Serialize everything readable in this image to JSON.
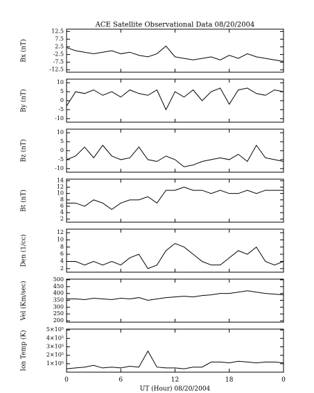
{
  "chart_data": [
    {
      "type": "line",
      "title": "ACE Satellite Observational Data   08/20/2004",
      "ylabel": "Bx (nT)",
      "color": "#000000",
      "x": [
        0,
        1,
        2,
        3,
        4,
        5,
        6,
        7,
        8,
        9,
        10,
        11,
        12,
        13,
        14,
        15,
        16,
        17,
        18,
        19,
        20,
        21,
        22,
        23,
        24
      ],
      "values": [
        2,
        0,
        -1,
        -2,
        -1,
        0,
        -2,
        -1,
        -3,
        -4,
        -2,
        3,
        -4,
        -5,
        -6,
        -5,
        -4,
        -6,
        -3,
        -5,
        -2,
        -4,
        -5,
        -6,
        -7
      ],
      "xlim": [
        0,
        24
      ],
      "ylim": [
        -14,
        14
      ],
      "yticks": [
        12.5,
        7.5,
        2.5,
        -2.5,
        -7.5,
        -12.5
      ]
    },
    {
      "type": "line",
      "ylabel": "By (nT)",
      "color": "#000000",
      "x": [
        0,
        1,
        2,
        3,
        4,
        5,
        6,
        7,
        8,
        9,
        10,
        11,
        12,
        13,
        14,
        15,
        16,
        17,
        18,
        19,
        20,
        21,
        22,
        23,
        24
      ],
      "values": [
        -3,
        5,
        4,
        6,
        3,
        5,
        2,
        6,
        4,
        3,
        6,
        -5,
        5,
        2,
        6,
        0,
        5,
        7,
        -2,
        6,
        7,
        4,
        3,
        6,
        5
      ],
      "xlim": [
        0,
        24
      ],
      "ylim": [
        -12,
        12
      ],
      "yticks": [
        10,
        5,
        0,
        -5,
        -10
      ]
    },
    {
      "type": "line",
      "ylabel": "Bz (nT)",
      "color": "#000000",
      "x": [
        0,
        1,
        2,
        3,
        4,
        5,
        6,
        7,
        8,
        9,
        10,
        11,
        12,
        13,
        14,
        15,
        16,
        17,
        18,
        19,
        20,
        21,
        22,
        23,
        24
      ],
      "values": [
        -5,
        -3,
        2,
        -4,
        3,
        -3,
        -5,
        -4,
        2,
        -5,
        -6,
        -3,
        -5,
        -9,
        -8,
        -6,
        -5,
        -4,
        -5,
        -2,
        -6,
        3,
        -4,
        -5,
        -6
      ],
      "xlim": [
        0,
        24
      ],
      "ylim": [
        -12,
        12
      ],
      "yticks": [
        10,
        5,
        0,
        -5,
        -10
      ]
    },
    {
      "type": "line",
      "ylabel": "Bt (nT)",
      "color": "#000000",
      "x": [
        0,
        1,
        2,
        3,
        4,
        5,
        6,
        7,
        8,
        9,
        10,
        11,
        12,
        13,
        14,
        15,
        16,
        17,
        18,
        19,
        20,
        21,
        22,
        23,
        24
      ],
      "values": [
        7,
        7,
        6,
        8,
        7,
        5,
        7,
        8,
        8,
        9,
        7,
        11,
        11,
        12,
        11,
        11,
        10,
        11,
        10,
        10,
        11,
        10,
        11,
        11,
        11
      ],
      "xlim": [
        0,
        24
      ],
      "ylim": [
        1,
        14.5
      ],
      "yticks": [
        14,
        12,
        10,
        8,
        6,
        4,
        2
      ]
    },
    {
      "type": "line",
      "ylabel": "Den (1/cc)",
      "color": "#000000",
      "x": [
        0,
        1,
        2,
        3,
        4,
        5,
        6,
        7,
        8,
        9,
        10,
        11,
        12,
        13,
        14,
        15,
        16,
        17,
        18,
        19,
        20,
        21,
        22,
        23,
        24
      ],
      "values": [
        4,
        4,
        3,
        4,
        3,
        4,
        3,
        5,
        6,
        2,
        3,
        7,
        9,
        8,
        6,
        4,
        3,
        3,
        5,
        7,
        6,
        8,
        4,
        3,
        4
      ],
      "xlim": [
        0,
        24
      ],
      "ylim": [
        1,
        13
      ],
      "yticks": [
        12,
        10,
        8,
        6,
        4,
        2
      ]
    },
    {
      "type": "line",
      "ylabel": "Vel (Km/sec)",
      "color": "#000000",
      "x": [
        0,
        1,
        2,
        3,
        4,
        5,
        6,
        7,
        8,
        9,
        10,
        11,
        12,
        13,
        14,
        15,
        16,
        17,
        18,
        19,
        20,
        21,
        22,
        23,
        24
      ],
      "values": [
        360,
        360,
        355,
        365,
        360,
        355,
        365,
        360,
        370,
        350,
        360,
        370,
        375,
        380,
        375,
        385,
        390,
        400,
        400,
        410,
        420,
        410,
        400,
        395,
        390
      ],
      "xlim": [
        0,
        24
      ],
      "ylim": [
        190,
        505
      ],
      "yticks": [
        500,
        450,
        400,
        350,
        300,
        250,
        200
      ]
    },
    {
      "type": "line",
      "ylabel": "Ion Temp (K)",
      "xlabel": "UT (Hour)   08/20/2004",
      "color": "#000000",
      "x": [
        0,
        1,
        2,
        3,
        4,
        5,
        6,
        7,
        8,
        9,
        10,
        11,
        12,
        13,
        14,
        15,
        16,
        17,
        18,
        19,
        20,
        21,
        22,
        23,
        24
      ],
      "values": [
        40000,
        50000,
        60000,
        80000,
        50000,
        60000,
        50000,
        70000,
        60000,
        250000,
        60000,
        50000,
        50000,
        40000,
        60000,
        60000,
        120000,
        120000,
        110000,
        130000,
        120000,
        110000,
        120000,
        120000,
        110000
      ],
      "xlim": [
        0,
        24
      ],
      "ylim": [
        0,
        510000
      ],
      "yticks": [
        {
          "value": 500000,
          "label": "5×10⁵"
        },
        {
          "value": 400000,
          "label": "4×10⁵"
        },
        {
          "value": 300000,
          "label": "3×10⁵"
        },
        {
          "value": 200000,
          "label": "2×10⁵"
        },
        {
          "value": 100000,
          "label": "1×10⁵"
        }
      ],
      "xticks": [
        0,
        6,
        12,
        18,
        {
          "value": 24,
          "label": "0"
        }
      ]
    }
  ]
}
